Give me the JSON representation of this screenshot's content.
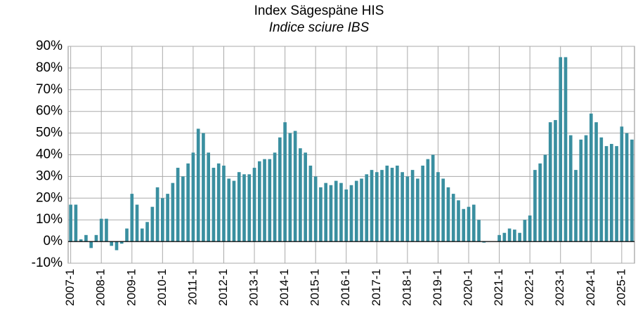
{
  "chart_data": {
    "type": "bar",
    "title": "Index Sägespäne HIS",
    "subtitle": "Indice sciure IBS",
    "color": "#3a8fa0",
    "grid": true,
    "categories": [
      "2007-1",
      null,
      null,
      null,
      null,
      null,
      "2008-1",
      null,
      null,
      null,
      null,
      null,
      "2009-1",
      null,
      null,
      null,
      null,
      null,
      "2010-1",
      null,
      null,
      null,
      null,
      null,
      "2011-1",
      null,
      null,
      null,
      null,
      null,
      "2012-1",
      null,
      null,
      null,
      null,
      null,
      "2013-1",
      null,
      null,
      null,
      null,
      null,
      "2014-1",
      null,
      null,
      null,
      null,
      null,
      "2015-1",
      null,
      null,
      null,
      null,
      null,
      "2016-1",
      null,
      null,
      null,
      null,
      null,
      "2017-1",
      null,
      null,
      null,
      null,
      null,
      "2018-1",
      null,
      null,
      null,
      null,
      null,
      "2019-1",
      null,
      null,
      null,
      null,
      null,
      "2020-1",
      null,
      null,
      null,
      null,
      null,
      "2021-1",
      null,
      null,
      null,
      null,
      null,
      "2022-1",
      null,
      null,
      null,
      null,
      null,
      "2023-1",
      null,
      null,
      null,
      null,
      null,
      "2024-1",
      null,
      null,
      null,
      null,
      null,
      "2025-1",
      null,
      null
    ],
    "values": [
      17,
      17,
      1,
      3,
      -3,
      3,
      10.5,
      10.5,
      -2,
      -4,
      -1,
      6,
      22,
      17,
      6,
      9,
      16,
      25,
      20,
      22,
      27,
      34,
      30,
      36,
      41,
      52,
      50,
      41,
      34,
      36,
      35,
      29,
      28,
      32,
      31,
      31,
      34,
      37,
      38,
      38,
      41,
      48,
      55,
      50,
      51,
      43,
      41,
      35,
      30,
      25,
      27,
      26,
      28,
      27,
      24,
      26,
      28,
      29,
      31,
      33,
      32,
      33,
      35,
      34,
      35,
      32,
      30,
      33,
      29,
      35,
      38,
      40,
      32,
      29,
      25,
      22,
      19,
      15,
      16,
      17,
      10,
      -0.5,
      0,
      0,
      3,
      4,
      6,
      5.5,
      4,
      10,
      12,
      33,
      36,
      40,
      55,
      56,
      85,
      85,
      49,
      33,
      47,
      49,
      59,
      55,
      48,
      44,
      45,
      44,
      53,
      50,
      47
    ],
    "ylim": [
      -10,
      90
    ],
    "yticks": [
      {
        "value": -10,
        "label": "-10%"
      },
      {
        "value": 0,
        "label": "0%"
      },
      {
        "value": 10,
        "label": "10%"
      },
      {
        "value": 20,
        "label": "20%"
      },
      {
        "value": 30,
        "label": "30%"
      },
      {
        "value": 40,
        "label": "40%"
      },
      {
        "value": 50,
        "label": "50%"
      },
      {
        "value": 60,
        "label": "60%"
      },
      {
        "value": 70,
        "label": "70%"
      },
      {
        "value": 80,
        "label": "80%"
      },
      {
        "value": 90,
        "label": "90%"
      }
    ]
  }
}
